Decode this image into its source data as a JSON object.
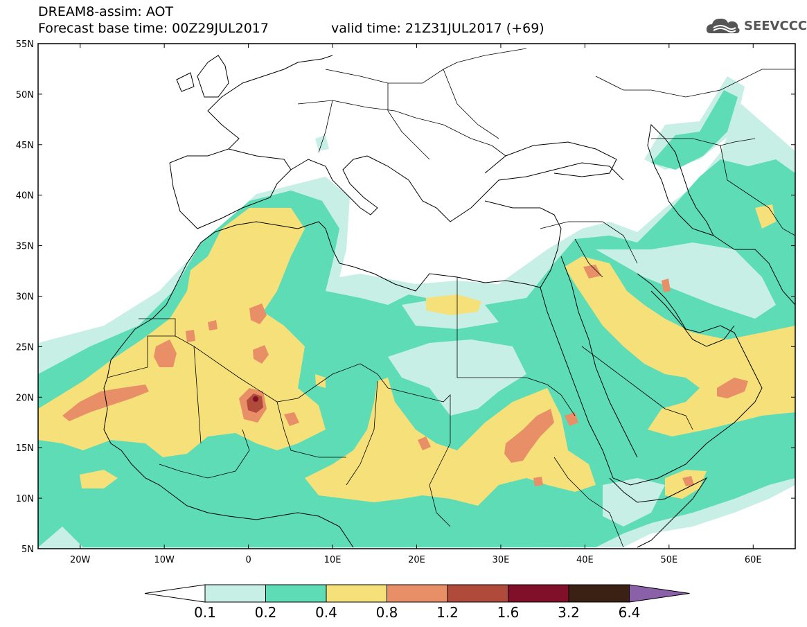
{
  "header": {
    "line1": "DREAM8-assim: AOT",
    "line2": "Forecast base time: 00Z29JUL2017",
    "line3": "valid time: 21Z31JUL2017 (+69)"
  },
  "logo": {
    "text": "SEEVCCC",
    "icon": "cloud-icon"
  },
  "map": {
    "lon_range": [
      -25,
      65
    ],
    "lat_range": [
      5,
      55
    ],
    "lat_ticks": [
      "55N",
      "50N",
      "45N",
      "40N",
      "35N",
      "30N",
      "25N",
      "20N",
      "15N",
      "10N",
      "5N"
    ],
    "lon_ticks": [
      "20W",
      "10W",
      "0",
      "10E",
      "20E",
      "30E",
      "40E",
      "50E",
      "60E"
    ],
    "field": "Aerosol optical thickness (dust)"
  },
  "colorbar": {
    "labels": [
      "0.1",
      "0.2",
      "0.4",
      "0.8",
      "1.2",
      "1.6",
      "3.2",
      "6.4"
    ],
    "colors": [
      "#ffffff",
      "#c8efe6",
      "#5ddcb6",
      "#f6e07a",
      "#e88f68",
      "#b04a3a",
      "#80102a",
      "#3b2014",
      "#8a60a8"
    ]
  },
  "colors": {
    "c01": "#c8efe6",
    "c02": "#5ddcb6",
    "c04": "#f6e07a",
    "c08": "#e88f68",
    "c12": "#b04a3a",
    "c16": "#80102a"
  }
}
